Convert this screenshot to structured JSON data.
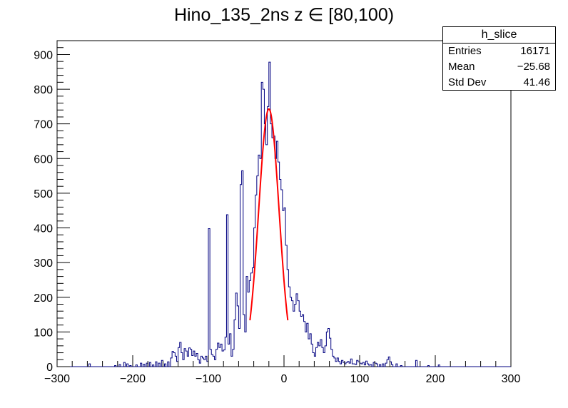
{
  "chart_data": {
    "type": "histogram",
    "title": "Hino_135_2ns z  ∈ [80,100)",
    "xlim": [
      -300,
      300
    ],
    "ylim": [
      0,
      940
    ],
    "x_ticks": [
      -300,
      -200,
      -100,
      0,
      100,
      200,
      300
    ],
    "y_ticks": [
      0,
      100,
      200,
      300,
      400,
      500,
      600,
      700,
      800,
      900
    ],
    "grid": false,
    "bin_width": 2,
    "histogram_color": "#000080",
    "fit_color": "#ff0000",
    "histogram": [
      [
        -258,
        8
      ],
      [
        -224,
        3
      ],
      [
        -218,
        6
      ],
      [
        -212,
        12
      ],
      [
        -208,
        8
      ],
      [
        -204,
        3
      ],
      [
        -196,
        5
      ],
      [
        -190,
        10
      ],
      [
        -186,
        7
      ],
      [
        -182,
        10
      ],
      [
        -178,
        12
      ],
      [
        -174,
        5
      ],
      [
        -170,
        14
      ],
      [
        -166,
        10
      ],
      [
        -162,
        18
      ],
      [
        -158,
        8
      ],
      [
        -154,
        14
      ],
      [
        -150,
        25
      ],
      [
        -148,
        44
      ],
      [
        -146,
        40
      ],
      [
        -144,
        30
      ],
      [
        -142,
        15
      ],
      [
        -140,
        55
      ],
      [
        -138,
        70
      ],
      [
        -136,
        40
      ],
      [
        -134,
        20
      ],
      [
        -132,
        52
      ],
      [
        -130,
        45
      ],
      [
        -128,
        30
      ],
      [
        -126,
        54
      ],
      [
        -124,
        50
      ],
      [
        -122,
        32
      ],
      [
        -120,
        45
      ],
      [
        -118,
        30
      ],
      [
        -116,
        38
      ],
      [
        -114,
        20
      ],
      [
        -112,
        10
      ],
      [
        -110,
        30
      ],
      [
        -108,
        25
      ],
      [
        -106,
        20
      ],
      [
        -104,
        30
      ],
      [
        -102,
        15
      ],
      [
        -100,
        398
      ],
      [
        -98,
        50
      ],
      [
        -96,
        35
      ],
      [
        -94,
        30
      ],
      [
        -92,
        20
      ],
      [
        -90,
        50
      ],
      [
        -88,
        68
      ],
      [
        -86,
        55
      ],
      [
        -84,
        65
      ],
      [
        -82,
        45
      ],
      [
        -80,
        48
      ],
      [
        -78,
        85
      ],
      [
        -76,
        438
      ],
      [
        -74,
        65
      ],
      [
        -72,
        95
      ],
      [
        -70,
        30
      ],
      [
        -68,
        50
      ],
      [
        -66,
        135
      ],
      [
        -64,
        212
      ],
      [
        -62,
        175
      ],
      [
        -60,
        110
      ],
      [
        -58,
        525
      ],
      [
        -56,
        565
      ],
      [
        -54,
        150
      ],
      [
        -52,
        100
      ],
      [
        -50,
        260
      ],
      [
        -48,
        215
      ],
      [
        -46,
        248
      ],
      [
        -44,
        270
      ],
      [
        -42,
        285
      ],
      [
        -40,
        400
      ],
      [
        -38,
        495
      ],
      [
        -36,
        550
      ],
      [
        -34,
        610
      ],
      [
        -32,
        600
      ],
      [
        -30,
        820
      ],
      [
        -28,
        800
      ],
      [
        -26,
        700
      ],
      [
        -24,
        640
      ],
      [
        -22,
        750
      ],
      [
        -20,
        878
      ],
      [
        -18,
        700
      ],
      [
        -16,
        660
      ],
      [
        -14,
        665
      ],
      [
        -12,
        600
      ],
      [
        -10,
        650
      ],
      [
        -8,
        590
      ],
      [
        -6,
        540
      ],
      [
        -4,
        510
      ],
      [
        -2,
        450
      ],
      [
        0,
        458
      ],
      [
        2,
        350
      ],
      [
        4,
        280
      ],
      [
        6,
        230
      ],
      [
        8,
        200
      ],
      [
        10,
        190
      ],
      [
        12,
        160
      ],
      [
        14,
        180
      ],
      [
        16,
        210
      ],
      [
        18,
        190
      ],
      [
        20,
        160
      ],
      [
        22,
        145
      ],
      [
        24,
        150
      ],
      [
        26,
        130
      ],
      [
        28,
        100
      ],
      [
        30,
        125
      ],
      [
        32,
        80
      ],
      [
        34,
        95
      ],
      [
        36,
        65
      ],
      [
        38,
        40
      ],
      [
        40,
        30
      ],
      [
        42,
        55
      ],
      [
        44,
        70
      ],
      [
        46,
        60
      ],
      [
        48,
        78
      ],
      [
        50,
        55
      ],
      [
        52,
        40
      ],
      [
        54,
        60
      ],
      [
        56,
        100
      ],
      [
        58,
        110
      ],
      [
        60,
        82
      ],
      [
        62,
        50
      ],
      [
        64,
        30
      ],
      [
        66,
        25
      ],
      [
        68,
        15
      ],
      [
        70,
        25
      ],
      [
        72,
        15
      ],
      [
        74,
        8
      ],
      [
        76,
        18
      ],
      [
        78,
        12
      ],
      [
        80,
        8
      ],
      [
        82,
        12
      ],
      [
        84,
        15
      ],
      [
        86,
        10
      ],
      [
        88,
        22
      ],
      [
        90,
        8
      ],
      [
        92,
        8
      ],
      [
        94,
        6
      ],
      [
        96,
        18
      ],
      [
        98,
        14
      ],
      [
        100,
        10
      ],
      [
        102,
        8
      ],
      [
        104,
        12
      ],
      [
        106,
        5
      ],
      [
        108,
        16
      ],
      [
        110,
        8
      ],
      [
        112,
        4
      ],
      [
        114,
        6
      ],
      [
        118,
        12
      ],
      [
        120,
        10
      ],
      [
        122,
        8
      ],
      [
        126,
        6
      ],
      [
        130,
        8
      ],
      [
        134,
        10
      ],
      [
        136,
        20
      ],
      [
        138,
        28
      ],
      [
        140,
        14
      ],
      [
        142,
        6
      ],
      [
        148,
        8
      ],
      [
        154,
        3
      ],
      [
        174,
        18
      ],
      [
        190,
        3
      ],
      [
        204,
        5
      ]
    ],
    "fit": {
      "function": "gaus",
      "constant": 743,
      "mean": -20,
      "sigma": 13.5,
      "range": [
        -45,
        5
      ]
    }
  },
  "stats_box": {
    "name": "h_slice",
    "entries_label": "Entries",
    "entries_value": "16171",
    "mean_label": "Mean",
    "mean_value": "−25.68",
    "stddev_label": "Std Dev",
    "stddev_value": "41.46"
  }
}
